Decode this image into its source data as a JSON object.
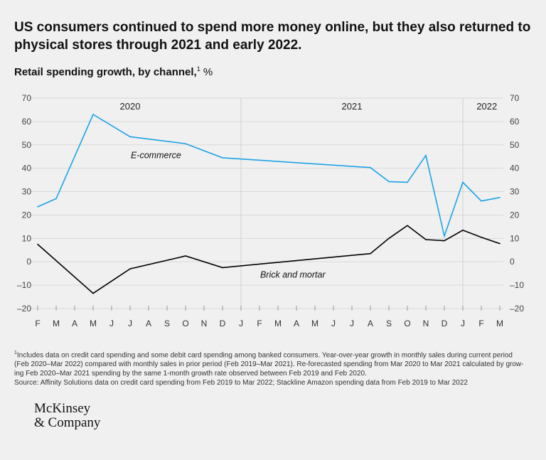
{
  "title": "US consumers continued to spend more money online, but they also returned to physical stores through 2021 and early 2022.",
  "subtitle": {
    "text": "Retail spending growth, by channel,",
    "footnote_mark": "1",
    "unit": "%"
  },
  "chart_data": {
    "type": "line",
    "title": "Retail spending growth, by channel",
    "ylabel": "%",
    "ylim": [
      -20,
      70
    ],
    "yticks": [
      70,
      60,
      50,
      40,
      30,
      20,
      10,
      0,
      -10,
      -20
    ],
    "ytick_labels": [
      "70",
      "60",
      "50",
      "40",
      "30",
      "20",
      "10",
      "0",
      "–10",
      "–20"
    ],
    "categories": [
      "F",
      "M",
      "A",
      "M",
      "J",
      "J",
      "A",
      "S",
      "O",
      "N",
      "D",
      "J",
      "F",
      "M",
      "A",
      "M",
      "J",
      "J",
      "A",
      "S",
      "O",
      "N",
      "D",
      "J",
      "F",
      "M"
    ],
    "year_labels": [
      {
        "label": "2020",
        "at_index": 5
      },
      {
        "label": "2021",
        "at_index": 17
      },
      {
        "label": "2022",
        "at_index": 24.3
      }
    ],
    "year_dividers_at_index": [
      11,
      23
    ],
    "series": [
      {
        "name": "E-commerce",
        "label": "E-commerce",
        "color": "#1ca3e6",
        "points": [
          [
            0,
            23.5
          ],
          [
            1,
            27
          ],
          [
            3,
            63
          ],
          [
            5,
            53.5
          ],
          [
            8,
            50.5
          ],
          [
            10,
            44.5
          ],
          [
            18,
            40.3
          ],
          [
            19,
            34.3
          ],
          [
            20,
            34
          ],
          [
            21,
            45.5
          ],
          [
            22,
            11
          ],
          [
            23,
            34
          ],
          [
            24,
            26
          ],
          [
            25,
            27.5
          ]
        ]
      },
      {
        "name": "Brick and mortar",
        "label": "Brick and mortar",
        "color": "#000000",
        "points": [
          [
            0,
            7.5
          ],
          [
            3,
            -13.5
          ],
          [
            5,
            -3
          ],
          [
            8,
            2.5
          ],
          [
            10,
            -2.5
          ],
          [
            18,
            3.5
          ],
          [
            19,
            10
          ],
          [
            20,
            15.5
          ],
          [
            21,
            9.5
          ],
          [
            22,
            9
          ],
          [
            23,
            13.5
          ],
          [
            24,
            10.5
          ],
          [
            25,
            7.8
          ]
        ]
      }
    ]
  },
  "footnotes": {
    "mark": "1",
    "line1": "Includes data on credit card spending and some debit card spending among banked consumers. Year-over-year growth in monthly sales during current period",
    "line2": "(Feb 2020–Mar 2022) compared with monthly sales in prior period (Feb 2019–Mar 2021). Re-forecasted spending from Mar 2020 to Mar 2021 calculated by grow-",
    "line3": "ing Feb 2020–Mar 2021 spending by the same 1-month growth rate observed between Feb 2019 and Feb 2020.",
    "source": "Source: Affinity Solutions data on credit card spending from Feb 2019 to Mar 2022; Stackline Amazon spending data from Feb 2019 to Mar 2022"
  },
  "logo": {
    "line1": "McKinsey",
    "line2": "& Company"
  }
}
